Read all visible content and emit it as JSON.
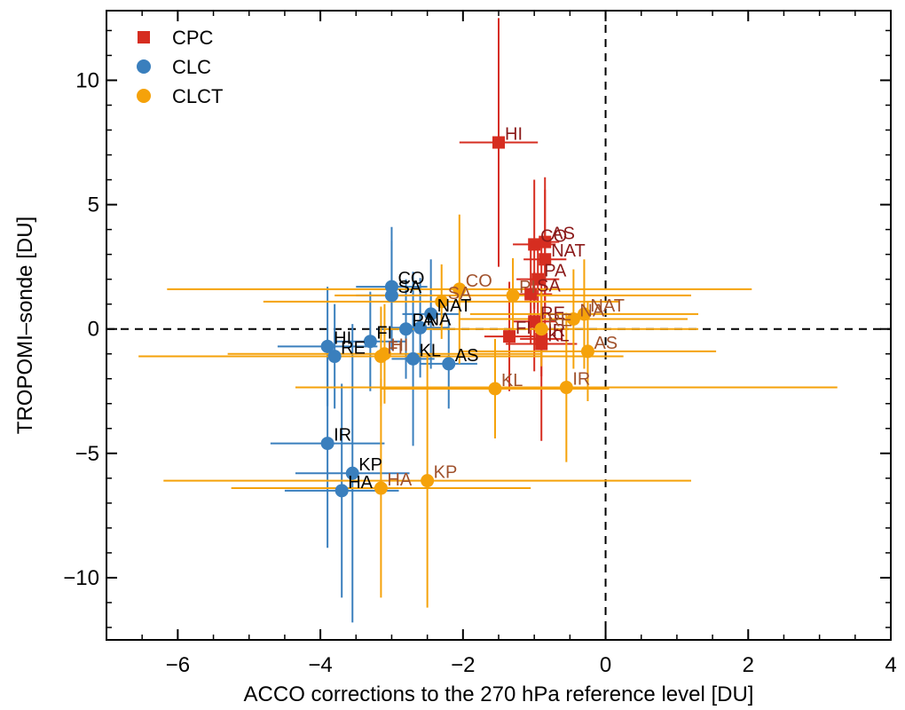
{
  "chart_data": {
    "type": "scatter",
    "xlabel": "ACCO corrections to the 270 hPa reference level [DU]",
    "ylabel": "TROPOMI–sonde [DU]",
    "xlim": [
      -7,
      4
    ],
    "ylim": [
      -12.5,
      12.8
    ],
    "xticks": [
      -6,
      -4,
      -2,
      0,
      2,
      4
    ],
    "yticks": [
      -10,
      -5,
      0,
      5,
      10
    ],
    "xtick_labels": [
      "−6",
      "−4",
      "−2",
      "0",
      "2",
      "4"
    ],
    "ytick_labels": [
      "−10",
      "−5",
      "0",
      "5",
      "10"
    ],
    "reference_lines": {
      "x": 0,
      "y": 0,
      "style": "dashed"
    },
    "legend_position": "top-left",
    "series": [
      {
        "name": "CPC",
        "marker": "square",
        "color": "#d62d20",
        "label_color": "#8b1a1a",
        "points": [
          {
            "label": "HI",
            "x": -1.5,
            "y": 7.5,
            "xerr": 0.55,
            "yerr": 5.0
          },
          {
            "label": "AS",
            "x": -0.85,
            "y": 3.5,
            "xerr": 0.2,
            "yerr": 2.6
          },
          {
            "label": "CO",
            "x": -1.0,
            "y": 3.4,
            "xerr": 0.3,
            "yerr": 2.6
          },
          {
            "label": "NAT",
            "x": -0.85,
            "y": 2.8,
            "xerr": 0.3,
            "yerr": 2.8
          },
          {
            "label": "PA",
            "x": -0.95,
            "y": 2.0,
            "xerr": 0.3,
            "yerr": 1.5
          },
          {
            "label": "SA",
            "x": -1.05,
            "y": 1.4,
            "xerr": 0.3,
            "yerr": 2.0
          },
          {
            "label": "FI",
            "x": -1.35,
            "y": -0.3,
            "xerr": 0.35,
            "yerr": 2.2
          },
          {
            "label": "RE",
            "x": -1.0,
            "y": 0.3,
            "xerr": 0.3,
            "yerr": 2.0
          },
          {
            "label": "KL",
            "x": -0.9,
            "y": -0.6,
            "xerr": 0.5,
            "yerr": 3.9
          },
          {
            "label": "IR",
            "x": -0.9,
            "y": -0.4,
            "xerr": 0.3,
            "yerr": 1.5
          }
        ]
      },
      {
        "name": "CLC",
        "marker": "circle",
        "color": "#3a7fbd",
        "label_color": "#000000",
        "points": [
          {
            "label": "CO",
            "x": -3.0,
            "y": 1.7,
            "xerr": 0.5,
            "yerr": 2.4
          },
          {
            "label": "SA",
            "x": -3.0,
            "y": 1.35,
            "xerr": 0.5,
            "yerr": 2.2
          },
          {
            "label": "NAT",
            "x": -2.45,
            "y": 0.6,
            "xerr": 0.4,
            "yerr": 2.2
          },
          {
            "label": "PA",
            "x": -2.8,
            "y": 0.0,
            "xerr": 0.4,
            "yerr": 2.0
          },
          {
            "label": "NA",
            "x": -2.6,
            "y": 0.05,
            "xerr": 0.4,
            "yerr": 2.0
          },
          {
            "label": "HI",
            "x": -3.9,
            "y": -0.7,
            "xerr": 0.7,
            "yerr": 2.4
          },
          {
            "label": "FI",
            "x": -3.3,
            "y": -0.5,
            "xerr": 0.5,
            "yerr": 2.0
          },
          {
            "label": "RE",
            "x": -3.8,
            "y": -1.1,
            "xerr": 0.7,
            "yerr": 2.1
          },
          {
            "label": "KL",
            "x": -2.7,
            "y": -1.2,
            "xerr": 0.3,
            "yerr": 3.5
          },
          {
            "label": "AS",
            "x": -2.2,
            "y": -1.4,
            "xerr": 0.4,
            "yerr": 1.8
          },
          {
            "label": "IR",
            "x": -3.9,
            "y": -4.6,
            "xerr": 0.8,
            "yerr": 4.2
          },
          {
            "label": "KP",
            "x": -3.55,
            "y": -5.8,
            "xerr": 0.8,
            "yerr": 6.0
          },
          {
            "label": "HA",
            "x": -3.7,
            "y": -6.5,
            "xerr": 0.8,
            "yerr": 4.3
          }
        ]
      },
      {
        "name": "CLCT",
        "marker": "circle",
        "color": "#f5a20a",
        "label_color": "#a0522d",
        "points": [
          {
            "label": "CO",
            "x": -2.05,
            "y": 1.6,
            "xerr": 4.1,
            "yerr": 3.0
          },
          {
            "label": "PI",
            "x": -1.3,
            "y": 1.35,
            "xerr": 2.5,
            "yerr": 1.5
          },
          {
            "label": "SA",
            "x": -2.3,
            "y": 1.1,
            "xerr": 2.5,
            "yerr": 1.5
          },
          {
            "label": "NAT",
            "x": -0.3,
            "y": 0.6,
            "xerr": 1.6,
            "yerr": 2.2
          },
          {
            "label": "NA",
            "x": -0.45,
            "y": 0.4,
            "xerr": 1.6,
            "yerr": 2.0
          },
          {
            "label": "RE",
            "x": -0.9,
            "y": 0.0,
            "xerr": 2.2,
            "yerr": 1.5
          },
          {
            "label": "HI",
            "x": -3.1,
            "y": -1.0,
            "xerr": 2.2,
            "yerr": 2.0
          },
          {
            "label": "FI",
            "x": -3.15,
            "y": -1.1,
            "xerr": 3.4,
            "yerr": 2.0
          },
          {
            "label": "AS",
            "x": -0.25,
            "y": -0.9,
            "xerr": 1.8,
            "yerr": 2.0
          },
          {
            "label": "KL",
            "x": -1.55,
            "y": -2.4,
            "xerr": 1.6,
            "yerr": 2.0
          },
          {
            "label": "IR",
            "x": -0.55,
            "y": -2.35,
            "xerr": 3.8,
            "yerr": 3.0
          },
          {
            "label": "KP",
            "x": -2.5,
            "y": -6.1,
            "xerr": 3.7,
            "yerr": 5.1
          },
          {
            "label": "HA",
            "x": -3.15,
            "y": -6.4,
            "xerr": 2.1,
            "yerr": 4.4
          }
        ]
      }
    ]
  }
}
